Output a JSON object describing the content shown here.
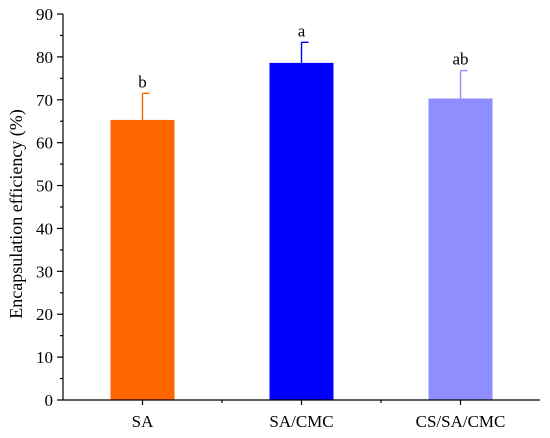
{
  "chart_data": {
    "type": "bar",
    "title": "",
    "xlabel": "",
    "ylabel": "Encapsulation efficiency (%)",
    "ylim": [
      0,
      90
    ],
    "yticks": [
      0,
      10,
      20,
      30,
      40,
      50,
      60,
      70,
      80,
      90
    ],
    "categories": [
      "SA",
      "SA/CMC",
      "CS/SA/CMC"
    ],
    "values": [
      65.3,
      78.6,
      70.3
    ],
    "errors": [
      6.2,
      4.8,
      6.5
    ],
    "significance_labels": [
      "b",
      "a",
      "ab"
    ],
    "colors": [
      "#ff6600",
      "#0000ff",
      "#8e8eff"
    ],
    "grid": false,
    "legend": "none"
  }
}
